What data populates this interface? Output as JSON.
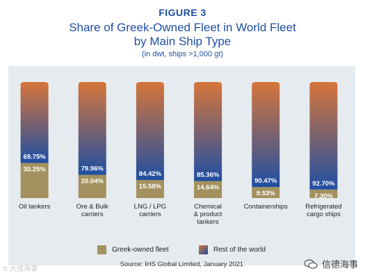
{
  "figure_label": "FIGURE 3",
  "title_line1": "Share of Greek-Owned Fleet in World Fleet",
  "title_line2": "by Main Ship Type",
  "subtitle": "(in dwt, ships >1,000 gt)",
  "source": "Source: IHS Global Limited, January 2021",
  "legend": {
    "greek_label": "Greek-owned fleet",
    "rest_label": "Rest of the world"
  },
  "watermark_left": "© 大成海事",
  "watermark_right": "信德海事",
  "colors": {
    "greek": "#a39260",
    "rest_top": "#d7753a",
    "rest_bottom": "#1f4fa3",
    "panel": "#e6ebef",
    "title": "#1f4fa3"
  },
  "chart_data": {
    "type": "bar",
    "stacked": true,
    "percent": true,
    "categories": [
      "Oil tankers",
      "Ore & Bulk carriers",
      "LNG / LPG carriers",
      "Chemical & product tankers",
      "Containerships",
      "Refrigerated cargo ships"
    ],
    "category_lines": [
      [
        "Oil tankers"
      ],
      [
        "Ore & Bulk",
        "carriers"
      ],
      [
        "LNG / LPG",
        "carriers"
      ],
      [
        "Chemical",
        "& product",
        "tankers"
      ],
      [
        "Containerships"
      ],
      [
        "Refrigerated",
        "cargo ships"
      ]
    ],
    "series": [
      {
        "name": "Greek-owned fleet",
        "values": [
          30.25,
          20.04,
          15.58,
          14.64,
          9.53,
          7.3
        ],
        "labels": [
          "30.25%",
          "20.04%",
          "15.58%",
          "14.64%",
          "9.53%",
          "7.30%"
        ]
      },
      {
        "name": "Rest of the world",
        "values": [
          69.75,
          79.96,
          84.42,
          85.36,
          90.47,
          92.7
        ],
        "labels": [
          "69.75%",
          "79.96%",
          "84.42%",
          "85.36%",
          "90.47%",
          "92.70%"
        ]
      }
    ],
    "ylim": [
      0,
      100
    ],
    "grid": false,
    "legend_position": "bottom"
  }
}
